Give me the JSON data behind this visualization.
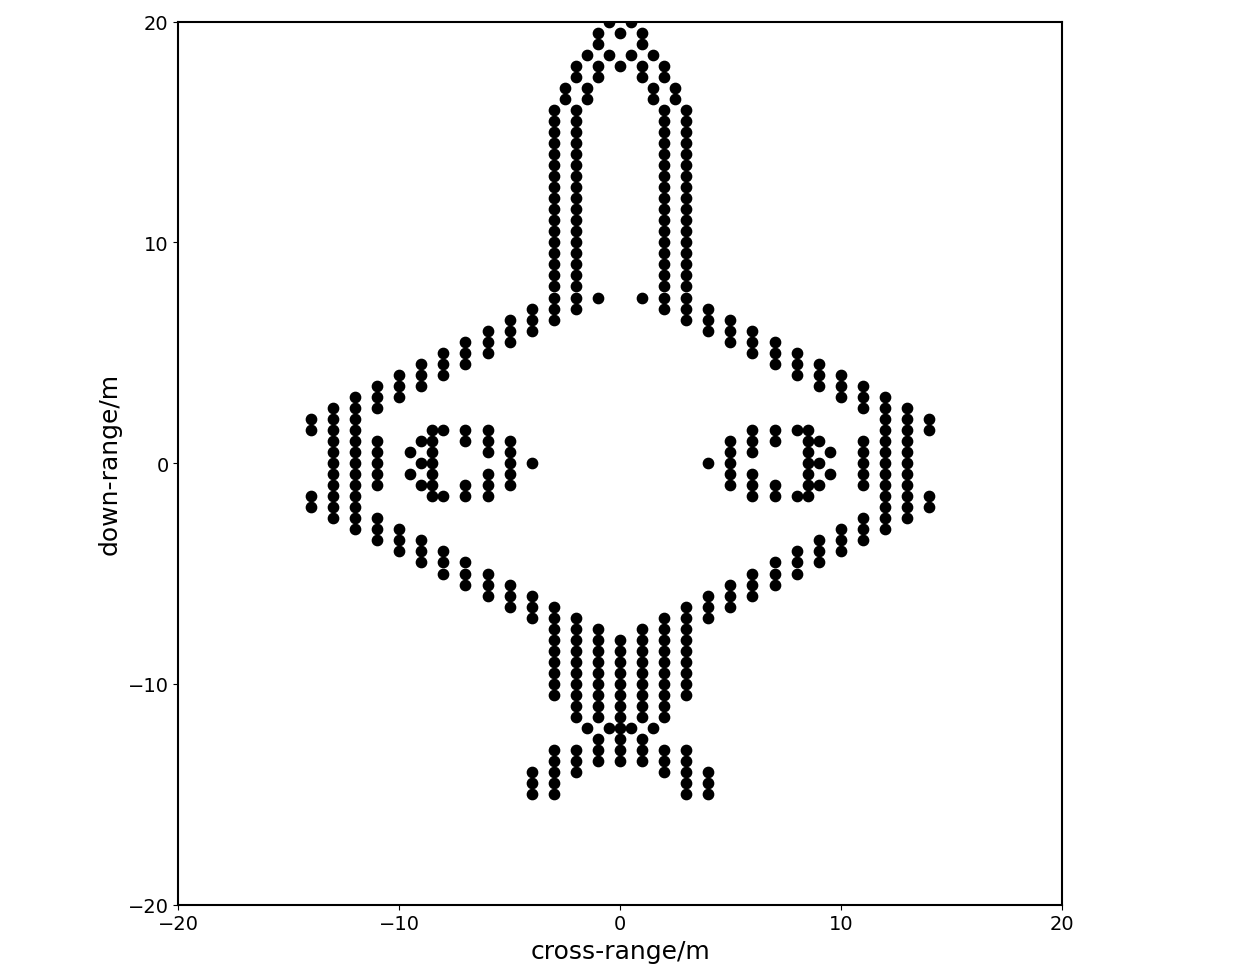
{
  "title": "",
  "xlabel": "cross-range/m",
  "ylabel": "down-range/m",
  "xlim": [
    -20,
    20
  ],
  "ylim": [
    -20,
    20
  ],
  "xticks": [
    -20,
    -10,
    0,
    10,
    20
  ],
  "yticks": [
    -20,
    -10,
    0,
    10,
    20
  ],
  "dot_color": "#000000",
  "dot_size": 55,
  "background_color": "#ffffff",
  "points": [
    [
      0,
      20.5
    ],
    [
      -0.5,
      20
    ],
    [
      0.5,
      20
    ],
    [
      -1,
      19.5
    ],
    [
      0,
      19.5
    ],
    [
      1,
      19.5
    ],
    [
      -1,
      19
    ],
    [
      1,
      19
    ],
    [
      -1.5,
      18.5
    ],
    [
      -0.5,
      18.5
    ],
    [
      0.5,
      18.5
    ],
    [
      1.5,
      18.5
    ],
    [
      -2,
      18
    ],
    [
      -1,
      18
    ],
    [
      0,
      18
    ],
    [
      1,
      18
    ],
    [
      2,
      18
    ],
    [
      -2,
      17.5
    ],
    [
      -1,
      17.5
    ],
    [
      1,
      17.5
    ],
    [
      2,
      17.5
    ],
    [
      -2.5,
      17
    ],
    [
      -1.5,
      17
    ],
    [
      1.5,
      17
    ],
    [
      2.5,
      17
    ],
    [
      -2.5,
      16.5
    ],
    [
      -1.5,
      16.5
    ],
    [
      1.5,
      16.5
    ],
    [
      2.5,
      16.5
    ],
    [
      -3,
      16
    ],
    [
      -2,
      16
    ],
    [
      2,
      16
    ],
    [
      3,
      16
    ],
    [
      -3,
      15.5
    ],
    [
      -2,
      15.5
    ],
    [
      2,
      15.5
    ],
    [
      3,
      15.5
    ],
    [
      -3,
      15
    ],
    [
      -2,
      15
    ],
    [
      2,
      15
    ],
    [
      3,
      15
    ],
    [
      -3,
      14.5
    ],
    [
      -2,
      14.5
    ],
    [
      2,
      14.5
    ],
    [
      3,
      14.5
    ],
    [
      -3,
      14
    ],
    [
      -2,
      14
    ],
    [
      2,
      14
    ],
    [
      3,
      14
    ],
    [
      -3,
      13.5
    ],
    [
      -2,
      13.5
    ],
    [
      2,
      13.5
    ],
    [
      3,
      13.5
    ],
    [
      -3,
      13
    ],
    [
      -2,
      13
    ],
    [
      2,
      13
    ],
    [
      3,
      13
    ],
    [
      -3,
      12.5
    ],
    [
      -2,
      12.5
    ],
    [
      2,
      12.5
    ],
    [
      3,
      12.5
    ],
    [
      -3,
      12
    ],
    [
      -2,
      12
    ],
    [
      2,
      12
    ],
    [
      3,
      12
    ],
    [
      -3,
      11.5
    ],
    [
      -2,
      11.5
    ],
    [
      2,
      11.5
    ],
    [
      3,
      11.5
    ],
    [
      -3,
      11
    ],
    [
      -2,
      11
    ],
    [
      2,
      11
    ],
    [
      3,
      11
    ],
    [
      -3,
      10.5
    ],
    [
      -2,
      10.5
    ],
    [
      2,
      10.5
    ],
    [
      3,
      10.5
    ],
    [
      -3,
      10
    ],
    [
      -2,
      10
    ],
    [
      2,
      10
    ],
    [
      3,
      10
    ],
    [
      -3,
      9.5
    ],
    [
      -2,
      9.5
    ],
    [
      2,
      9.5
    ],
    [
      3,
      9.5
    ],
    [
      -3,
      9
    ],
    [
      -2,
      9
    ],
    [
      2,
      9
    ],
    [
      3,
      9
    ],
    [
      -3,
      8.5
    ],
    [
      -2,
      8.5
    ],
    [
      2,
      8.5
    ],
    [
      3,
      8.5
    ],
    [
      -3,
      8
    ],
    [
      -2,
      8
    ],
    [
      2,
      8
    ],
    [
      3,
      8
    ],
    [
      -3,
      7.5
    ],
    [
      -2,
      7.5
    ],
    [
      -1,
      7.5
    ],
    [
      1,
      7.5
    ],
    [
      2,
      7.5
    ],
    [
      3,
      7.5
    ],
    [
      -4,
      7
    ],
    [
      -3,
      7
    ],
    [
      -2,
      7
    ],
    [
      2,
      7
    ],
    [
      3,
      7
    ],
    [
      4,
      7
    ],
    [
      -5,
      6.5
    ],
    [
      -4,
      6.5
    ],
    [
      -3,
      6.5
    ],
    [
      3,
      6.5
    ],
    [
      4,
      6.5
    ],
    [
      5,
      6.5
    ],
    [
      -6,
      6
    ],
    [
      -5,
      6
    ],
    [
      -4,
      6
    ],
    [
      4,
      6
    ],
    [
      5,
      6
    ],
    [
      6,
      6
    ],
    [
      -7,
      5.5
    ],
    [
      -6,
      5.5
    ],
    [
      -5,
      5.5
    ],
    [
      5,
      5.5
    ],
    [
      6,
      5.5
    ],
    [
      7,
      5.5
    ],
    [
      -8,
      5
    ],
    [
      -7,
      5
    ],
    [
      -6,
      5
    ],
    [
      6,
      5
    ],
    [
      7,
      5
    ],
    [
      8,
      5
    ],
    [
      -9,
      4.5
    ],
    [
      -8,
      4.5
    ],
    [
      -7,
      4.5
    ],
    [
      7,
      4.5
    ],
    [
      8,
      4.5
    ],
    [
      9,
      4.5
    ],
    [
      -10,
      4
    ],
    [
      -9,
      4
    ],
    [
      -8,
      4
    ],
    [
      8,
      4
    ],
    [
      9,
      4
    ],
    [
      10,
      4
    ],
    [
      -11,
      3.5
    ],
    [
      -10,
      3.5
    ],
    [
      -9,
      3.5
    ],
    [
      9,
      3.5
    ],
    [
      10,
      3.5
    ],
    [
      11,
      3.5
    ],
    [
      -12,
      3
    ],
    [
      -11,
      3
    ],
    [
      -10,
      3
    ],
    [
      10,
      3
    ],
    [
      11,
      3
    ],
    [
      12,
      3
    ],
    [
      -13,
      2.5
    ],
    [
      -12,
      2.5
    ],
    [
      -11,
      2.5
    ],
    [
      11,
      2.5
    ],
    [
      12,
      2.5
    ],
    [
      13,
      2.5
    ],
    [
      -14,
      2
    ],
    [
      -13,
      2
    ],
    [
      -12,
      2
    ],
    [
      12,
      2
    ],
    [
      13,
      2
    ],
    [
      14,
      2
    ],
    [
      -14,
      1.5
    ],
    [
      -13,
      1.5
    ],
    [
      -12,
      1.5
    ],
    [
      12,
      1.5
    ],
    [
      13,
      1.5
    ],
    [
      14,
      1.5
    ],
    [
      -8,
      1.5
    ],
    [
      -7,
      1.5
    ],
    [
      -6,
      1.5
    ],
    [
      6,
      1.5
    ],
    [
      7,
      1.5
    ],
    [
      8,
      1.5
    ],
    [
      -7,
      1
    ],
    [
      -6,
      1
    ],
    [
      -5,
      1
    ],
    [
      5,
      1
    ],
    [
      6,
      1
    ],
    [
      7,
      1
    ],
    [
      -6,
      0.5
    ],
    [
      -5,
      0.5
    ],
    [
      5,
      0.5
    ],
    [
      6,
      0.5
    ],
    [
      -13,
      1
    ],
    [
      -12,
      1
    ],
    [
      -11,
      1
    ],
    [
      11,
      1
    ],
    [
      12,
      1
    ],
    [
      13,
      1
    ],
    [
      -13,
      0.5
    ],
    [
      -12,
      0.5
    ],
    [
      -11,
      0.5
    ],
    [
      11,
      0.5
    ],
    [
      12,
      0.5
    ],
    [
      13,
      0.5
    ],
    [
      -5,
      0
    ],
    [
      -4,
      0
    ],
    [
      4,
      0
    ],
    [
      5,
      0
    ],
    [
      -13,
      0
    ],
    [
      -12,
      0
    ],
    [
      -11,
      0
    ],
    [
      11,
      0
    ],
    [
      12,
      0
    ],
    [
      13,
      0
    ],
    [
      -13,
      -0.5
    ],
    [
      -12,
      -0.5
    ],
    [
      -11,
      -0.5
    ],
    [
      11,
      -0.5
    ],
    [
      12,
      -0.5
    ],
    [
      13,
      -0.5
    ],
    [
      -6,
      -0.5
    ],
    [
      -5,
      -0.5
    ],
    [
      5,
      -0.5
    ],
    [
      6,
      -0.5
    ],
    [
      -7,
      -1
    ],
    [
      -6,
      -1
    ],
    [
      -5,
      -1
    ],
    [
      5,
      -1
    ],
    [
      6,
      -1
    ],
    [
      7,
      -1
    ],
    [
      -13,
      -1
    ],
    [
      -12,
      -1
    ],
    [
      -11,
      -1
    ],
    [
      11,
      -1
    ],
    [
      12,
      -1
    ],
    [
      13,
      -1
    ],
    [
      -14,
      -1.5
    ],
    [
      -13,
      -1.5
    ],
    [
      -12,
      -1.5
    ],
    [
      12,
      -1.5
    ],
    [
      13,
      -1.5
    ],
    [
      14,
      -1.5
    ],
    [
      -8,
      -1.5
    ],
    [
      -7,
      -1.5
    ],
    [
      -6,
      -1.5
    ],
    [
      6,
      -1.5
    ],
    [
      7,
      -1.5
    ],
    [
      8,
      -1.5
    ],
    [
      -14,
      -2
    ],
    [
      -13,
      -2
    ],
    [
      -12,
      -2
    ],
    [
      12,
      -2
    ],
    [
      13,
      -2
    ],
    [
      14,
      -2
    ],
    [
      -13,
      -2.5
    ],
    [
      -12,
      -2.5
    ],
    [
      -11,
      -2.5
    ],
    [
      11,
      -2.5
    ],
    [
      12,
      -2.5
    ],
    [
      13,
      -2.5
    ],
    [
      -12,
      -3
    ],
    [
      -11,
      -3
    ],
    [
      -10,
      -3
    ],
    [
      10,
      -3
    ],
    [
      11,
      -3
    ],
    [
      12,
      -3
    ],
    [
      -11,
      -3.5
    ],
    [
      -10,
      -3.5
    ],
    [
      -9,
      -3.5
    ],
    [
      9,
      -3.5
    ],
    [
      10,
      -3.5
    ],
    [
      11,
      -3.5
    ],
    [
      -10,
      -4
    ],
    [
      -9,
      -4
    ],
    [
      -8,
      -4
    ],
    [
      8,
      -4
    ],
    [
      9,
      -4
    ],
    [
      10,
      -4
    ],
    [
      -9,
      -4.5
    ],
    [
      -8,
      -4.5
    ],
    [
      -7,
      -4.5
    ],
    [
      7,
      -4.5
    ],
    [
      8,
      -4.5
    ],
    [
      9,
      -4.5
    ],
    [
      -8,
      -5
    ],
    [
      -7,
      -5
    ],
    [
      -6,
      -5
    ],
    [
      6,
      -5
    ],
    [
      7,
      -5
    ],
    [
      8,
      -5
    ],
    [
      -7,
      -5.5
    ],
    [
      -6,
      -5.5
    ],
    [
      -5,
      -5.5
    ],
    [
      5,
      -5.5
    ],
    [
      6,
      -5.5
    ],
    [
      7,
      -5.5
    ],
    [
      -6,
      -6
    ],
    [
      -5,
      -6
    ],
    [
      -4,
      -6
    ],
    [
      4,
      -6
    ],
    [
      5,
      -6
    ],
    [
      6,
      -6
    ],
    [
      -5,
      -6.5
    ],
    [
      -4,
      -6.5
    ],
    [
      -3,
      -6.5
    ],
    [
      3,
      -6.5
    ],
    [
      4,
      -6.5
    ],
    [
      5,
      -6.5
    ],
    [
      -4,
      -7
    ],
    [
      -3,
      -7
    ],
    [
      -2,
      -7
    ],
    [
      2,
      -7
    ],
    [
      3,
      -7
    ],
    [
      4,
      -7
    ],
    [
      -3,
      -7.5
    ],
    [
      -2,
      -7.5
    ],
    [
      -1,
      -7.5
    ],
    [
      1,
      -7.5
    ],
    [
      2,
      -7.5
    ],
    [
      3,
      -7.5
    ],
    [
      -3,
      -8
    ],
    [
      -2,
      -8
    ],
    [
      -1,
      -8
    ],
    [
      0,
      -8
    ],
    [
      1,
      -8
    ],
    [
      2,
      -8
    ],
    [
      3,
      -8
    ],
    [
      -3,
      -8.5
    ],
    [
      -2,
      -8.5
    ],
    [
      -1,
      -8.5
    ],
    [
      0,
      -8.5
    ],
    [
      1,
      -8.5
    ],
    [
      2,
      -8.5
    ],
    [
      3,
      -8.5
    ],
    [
      -3,
      -9
    ],
    [
      -2,
      -9
    ],
    [
      -1,
      -9
    ],
    [
      0,
      -9
    ],
    [
      1,
      -9
    ],
    [
      2,
      -9
    ],
    [
      3,
      -9
    ],
    [
      -3,
      -9.5
    ],
    [
      -2,
      -9.5
    ],
    [
      -1,
      -9.5
    ],
    [
      0,
      -9.5
    ],
    [
      1,
      -9.5
    ],
    [
      2,
      -9.5
    ],
    [
      3,
      -9.5
    ],
    [
      -3,
      -10
    ],
    [
      -2,
      -10
    ],
    [
      -1,
      -10
    ],
    [
      0,
      -10
    ],
    [
      1,
      -10
    ],
    [
      2,
      -10
    ],
    [
      3,
      -10
    ],
    [
      -3,
      -10.5
    ],
    [
      -2,
      -10.5
    ],
    [
      -1,
      -10.5
    ],
    [
      0,
      -10.5
    ],
    [
      1,
      -10.5
    ],
    [
      2,
      -10.5
    ],
    [
      3,
      -10.5
    ],
    [
      -2,
      -11
    ],
    [
      -1,
      -11
    ],
    [
      0,
      -11
    ],
    [
      1,
      -11
    ],
    [
      2,
      -11
    ],
    [
      -2,
      -11.5
    ],
    [
      -1,
      -11.5
    ],
    [
      0,
      -11.5
    ],
    [
      1,
      -11.5
    ],
    [
      2,
      -11.5
    ],
    [
      -1.5,
      -12
    ],
    [
      -0.5,
      -12
    ],
    [
      0,
      -12
    ],
    [
      0.5,
      -12
    ],
    [
      1.5,
      -12
    ],
    [
      -1,
      -12.5
    ],
    [
      0,
      -12.5
    ],
    [
      1,
      -12.5
    ],
    [
      -3,
      -13
    ],
    [
      -2,
      -13
    ],
    [
      -1,
      -13
    ],
    [
      0,
      -13
    ],
    [
      1,
      -13
    ],
    [
      2,
      -13
    ],
    [
      3,
      -13
    ],
    [
      -3,
      -13.5
    ],
    [
      -2,
      -13.5
    ],
    [
      -1,
      -13.5
    ],
    [
      0,
      -13.5
    ],
    [
      1,
      -13.5
    ],
    [
      2,
      -13.5
    ],
    [
      3,
      -13.5
    ],
    [
      -4,
      -14
    ],
    [
      -3,
      -14
    ],
    [
      -2,
      -14
    ],
    [
      2,
      -14
    ],
    [
      3,
      -14
    ],
    [
      4,
      -14
    ],
    [
      -4,
      -14.5
    ],
    [
      -3,
      -14.5
    ],
    [
      3,
      -14.5
    ],
    [
      4,
      -14.5
    ],
    [
      -4,
      -15
    ],
    [
      -3,
      -15
    ],
    [
      3,
      -15
    ],
    [
      4,
      -15
    ],
    [
      -9,
      1
    ],
    [
      -9,
      0
    ],
    [
      -9,
      -1
    ],
    [
      -9.5,
      0.5
    ],
    [
      -9.5,
      -0.5
    ],
    [
      -8.5,
      1.5
    ],
    [
      -8.5,
      1
    ],
    [
      -8.5,
      0.5
    ],
    [
      -8.5,
      0
    ],
    [
      -8.5,
      -0.5
    ],
    [
      -8.5,
      -1
    ],
    [
      -8.5,
      -1.5
    ],
    [
      9,
      1
    ],
    [
      9,
      0
    ],
    [
      9,
      -1
    ],
    [
      9.5,
      0.5
    ],
    [
      9.5,
      -0.5
    ],
    [
      8.5,
      1.5
    ],
    [
      8.5,
      1
    ],
    [
      8.5,
      0.5
    ],
    [
      8.5,
      0
    ],
    [
      8.5,
      -0.5
    ],
    [
      8.5,
      -1
    ],
    [
      8.5,
      -1.5
    ]
  ]
}
